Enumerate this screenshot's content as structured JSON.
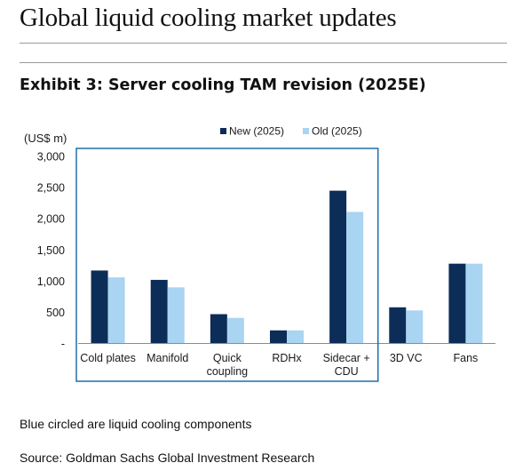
{
  "page": {
    "title": "Global liquid cooling market updates",
    "exhibit_title": "Exhibit 3: Server cooling TAM revision (2025E)",
    "note": "Blue circled are liquid cooling components",
    "source": "Source: Goldman Sachs Global Investment Research"
  },
  "chart_data": {
    "type": "bar",
    "ylabel": "(US$ m)",
    "ylim": [
      0,
      3000
    ],
    "yticks": [
      0,
      500,
      1000,
      1500,
      2000,
      2500,
      3000
    ],
    "ytick_labels": [
      "-",
      "500",
      "1,000",
      "1,500",
      "2,000",
      "2,500",
      "3,000"
    ],
    "categories": [
      "Cold plates",
      "Manifold",
      "Quick coupling",
      "RDHx",
      "Sidecar + CDU",
      "3D VC",
      "Fans"
    ],
    "category_label_lines": [
      [
        "Cold plates"
      ],
      [
        "Manifold"
      ],
      [
        "Quick",
        "coupling"
      ],
      [
        "RDHx"
      ],
      [
        "Sidecar +",
        "CDU"
      ],
      [
        "3D VC"
      ],
      [
        "Fans"
      ]
    ],
    "series": [
      {
        "name": "New (2025)",
        "color": "#0b2d57",
        "values": [
          1170,
          1020,
          470,
          210,
          2450,
          580,
          1280
        ]
      },
      {
        "name": "Old (2025)",
        "color": "#a9d4f2",
        "values": [
          1060,
          900,
          410,
          210,
          2110,
          530,
          1280
        ]
      }
    ],
    "legend_position": "top",
    "grid": false,
    "highlight": {
      "categories": [
        "Cold plates",
        "Manifold",
        "Quick coupling",
        "RDHx",
        "Sidecar + CDU"
      ],
      "color": "#1f6fa8"
    }
  }
}
